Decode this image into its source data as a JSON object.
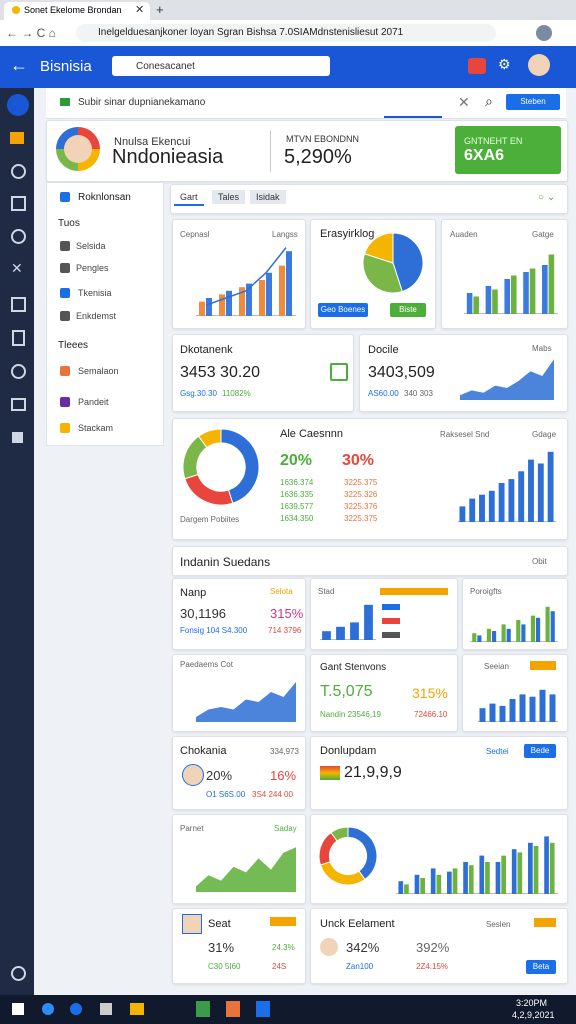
{
  "browser": {
    "tab_title": "Sonet Ekelome Brondan",
    "url": "Inelgelduesanjkoner loyan Sgran Bishsa 7.0SIAMdnstenisliesut 2071"
  },
  "app": {
    "title": "Bisnisia",
    "search": "Conesacanet"
  },
  "toolbar": {
    "input": "Subir sinar dupnianekamano",
    "button": "Steben"
  },
  "profile": {
    "subtitle": "Nnulsa Ekencui",
    "name": "Nndonieasia",
    "metric_label": "MTVN EBONDNN",
    "metric_value": "5,290%",
    "badge_top": "GNTNEHT EN",
    "badge_value": "6XA6"
  },
  "sidebar": {
    "items": [
      "Roknlonsan",
      "Tuos",
      "Selsida",
      "Pengles",
      "Tkenisia",
      "Enkdemst",
      "Tleees",
      "Semalaon",
      "Pandeit",
      "Stackam"
    ]
  },
  "tabs": [
    "Gart",
    "Tales",
    "Isidak"
  ],
  "cards": {
    "c1": {
      "title": "Cepnasl",
      "tag": "Langss"
    },
    "c2": {
      "title": "Erasyirklog",
      "button1": "Geo Boenes",
      "button2": "Biste"
    },
    "c3": {
      "title": "Auaden",
      "tag": "Gatge"
    },
    "c4": {
      "title": "Dkotanenk",
      "value": "3453  30.20",
      "sub1": "Gsg.30.30",
      "sub2": "11082%"
    },
    "c5": {
      "title": "Docile",
      "tag": "Mabs",
      "value": "3403,509",
      "sub1": "AS60.00",
      "sub2": "340 303"
    },
    "c6": {
      "title": "Ale Caesnnn",
      "v1": "20%",
      "v2": "30%",
      "list1": [
        "1636.374",
        "1636.335",
        "1639.577",
        "1634.350"
      ],
      "list2": [
        "3225.375",
        "3225.326",
        "3225.376",
        "3225.375"
      ],
      "foot": "Dargem Pobiites",
      "chart_title": "Raksesel Snd",
      "tag": "Gdage"
    },
    "section": {
      "title": "Indanin Suedans",
      "tag": "Obit"
    },
    "c7": {
      "title": "Nanp",
      "tag": "Selota",
      "value": "30,1196",
      "pct": "315%",
      "sub1": "Fonsig 104 S4.300",
      "sub2": "714 3796"
    },
    "c8": {
      "title": "Stad"
    },
    "c9": {
      "title": "Poroigfts"
    },
    "c10": {
      "title": "Paedaems Cot"
    },
    "c11": {
      "title": "Gant Stenvons",
      "value": "T.5,075",
      "pct": "315%",
      "sub1": "Nandin 23546,19",
      "sub2": "72466.10"
    },
    "c12": {
      "title": "Seeian"
    },
    "c13": {
      "title": "Chokania",
      "tag": "334,973",
      "v1": "20%",
      "v2": "16%",
      "sub1": "O1 S6S.00",
      "sub2": "3S4 244 00"
    },
    "c14": {
      "title": "Donlupdam",
      "value": "21,9,9,9",
      "link": "Sedtei",
      "button": "Bede"
    },
    "c15": {
      "title": "Parnet",
      "tag": "Saday"
    },
    "c16": {
      "title": "Seat",
      "v1": "31%",
      "v2": "24.3%",
      "sub1": "C30 5I60",
      "sub2": "24S"
    },
    "c17": {
      "title": "Unck Eelament",
      "tag": "Seslen",
      "v1": "342%",
      "v2": "392%",
      "sub1": "Zan100",
      "sub2": "2Z4.15%",
      "button": "Beta"
    }
  },
  "taskbar": {
    "time": "3:20PM",
    "date": "4,2,9,2021"
  },
  "charts": [
    {
      "type": "bar",
      "ylim": [
        0,
        10
      ],
      "series": [
        {
          "color": "#f08a3c",
          "values": [
            2,
            3,
            4,
            5,
            7
          ]
        },
        {
          "color": "#3b7be0",
          "values": [
            2.5,
            3.5,
            4.5,
            6,
            9
          ]
        }
      ],
      "line": {
        "color": "#2f6fd8",
        "values": [
          1.5,
          2.5,
          3.5,
          6,
          9.5
        ]
      }
    },
    {
      "type": "pie",
      "values": [
        45,
        35,
        20
      ],
      "colors": [
        "#2d6fd6",
        "#7ab648",
        "#f4b400"
      ]
    },
    {
      "type": "bar",
      "ylim": [
        0,
        10
      ],
      "series": [
        {
          "color": "#3b7be0",
          "values": [
            3,
            4,
            5,
            6,
            7
          ]
        },
        {
          "color": "#6bb33e",
          "values": [
            2.5,
            3.5,
            5.5,
            6.5,
            8.5
          ]
        }
      ]
    },
    {
      "type": "area",
      "ylim": [
        0,
        10
      ],
      "color": "#2d6fd6",
      "values": [
        1,
        2,
        1.5,
        3,
        2.5,
        4,
        6,
        5,
        8.5
      ]
    },
    {
      "type": "donut",
      "values": [
        45,
        25,
        20,
        10
      ],
      "colors": [
        "#2d6fd6",
        "#e8453c",
        "#7ab648",
        "#f4b400"
      ]
    },
    {
      "type": "bar",
      "ylim": [
        0,
        10
      ],
      "series": [
        {
          "color": "#2d6fd6",
          "values": [
            2,
            3,
            3.5,
            4,
            5,
            5.5,
            6.5,
            8,
            7.5,
            9
          ]
        }
      ]
    },
    {
      "type": "bar",
      "ylim": [
        0,
        10
      ],
      "series": [
        {
          "color": "#2d6fd6",
          "values": [
            2,
            3,
            4,
            8
          ]
        }
      ]
    },
    {
      "type": "bar",
      "ylim": [
        0,
        10
      ],
      "series": [
        {
          "color": "#6bb33e",
          "values": [
            2,
            3,
            4,
            5,
            6,
            8
          ]
        },
        {
          "color": "#2d6fd6",
          "values": [
            1.5,
            2.5,
            3,
            4,
            5.5,
            7
          ]
        }
      ]
    },
    {
      "type": "area",
      "ylim": [
        0,
        10
      ],
      "color": "#2d6fd6",
      "values": [
        1,
        2.5,
        3,
        2.5,
        4.5,
        4,
        6,
        5,
        8
      ]
    },
    {
      "type": "bar",
      "ylim": [
        0,
        10
      ],
      "series": [
        {
          "color": "#2d6fd6",
          "values": [
            3,
            4,
            3.5,
            5,
            6,
            5.5,
            7,
            6
          ]
        }
      ]
    },
    {
      "type": "area",
      "ylim": [
        0,
        10
      ],
      "color": "#5cae37",
      "values": [
        1,
        3,
        2,
        4.5,
        3.5,
        6,
        4,
        7,
        8
      ]
    },
    {
      "type": "donut",
      "values": [
        40,
        30,
        20,
        10
      ],
      "colors": [
        "#2d6fd6",
        "#f4b400",
        "#e8453c",
        "#7ab648"
      ]
    },
    {
      "type": "bar",
      "ylim": [
        0,
        10
      ],
      "series": [
        {
          "color": "#2d6fd6",
          "values": [
            2,
            3,
            4,
            3.5,
            5,
            6,
            5,
            7,
            8,
            9
          ]
        },
        {
          "color": "#6bb33e",
          "values": [
            1.5,
            2.5,
            3,
            4,
            4.5,
            5,
            6,
            6.5,
            7.5,
            8
          ]
        }
      ]
    }
  ]
}
